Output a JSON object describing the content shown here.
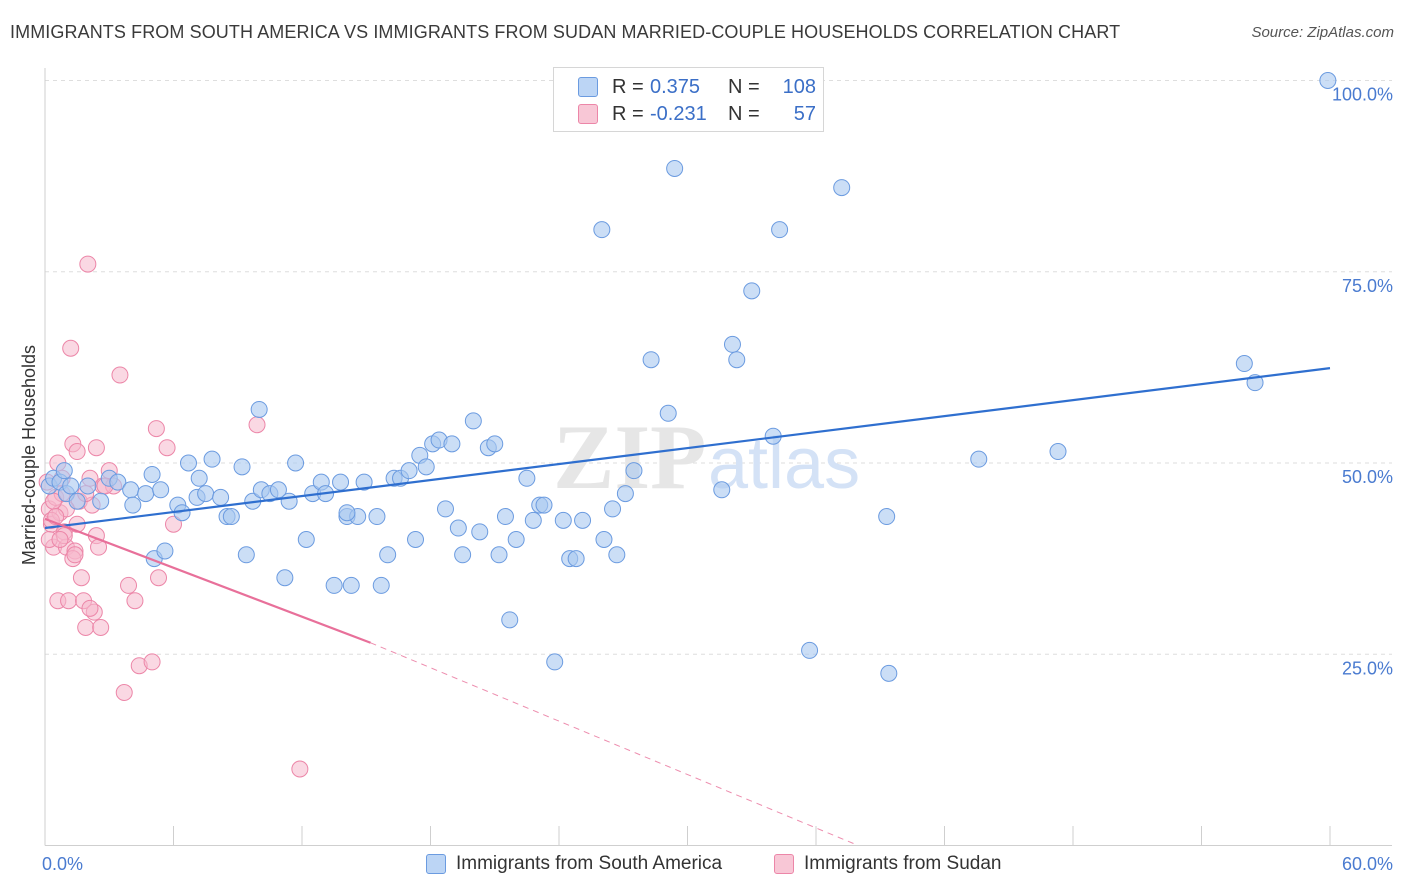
{
  "header": {
    "title": "IMMIGRANTS FROM SOUTH AMERICA VS IMMIGRANTS FROM SUDAN MARRIED-COUPLE HOUSEHOLDS CORRELATION CHART",
    "source": "Source: ZipAtlas.com"
  },
  "stats": {
    "blue": {
      "r_label": "R =",
      "r_value": "0.375",
      "n_label": "N =",
      "n_value": "108"
    },
    "pink": {
      "r_label": "R =",
      "r_value": "-0.231",
      "n_label": "N =",
      "n_value": "57"
    }
  },
  "watermark": {
    "zip": "ZIP",
    "atlas": "atlas"
  },
  "colors": {
    "blue_fill": "#a8c8f0",
    "blue_stroke": "#6b9be0",
    "blue_line": "#2f6fcf",
    "pink_fill": "#f6b8cc",
    "pink_stroke": "#ec86a8",
    "pink_line": "#e8709a",
    "axis_text": "#4a7bd0",
    "grid": "#dedede"
  },
  "chart_data": {
    "type": "scatter",
    "title": "IMMIGRANTS FROM SOUTH AMERICA VS IMMIGRANTS FROM SUDAN MARRIED-COUPLE HOUSEHOLDS CORRELATION CHART",
    "xlabel": "",
    "ylabel": "Married-couple Households",
    "xlim": [
      0,
      60
    ],
    "ylim": [
      0,
      102
    ],
    "x_tick_labels": [
      "0.0%",
      "60.0%"
    ],
    "y_ticks": [
      25,
      50,
      75,
      100
    ],
    "y_tick_labels": [
      "25.0%",
      "50.0%",
      "75.0%",
      "100.0%"
    ],
    "grid": true,
    "legend_position": "bottom-center",
    "series": [
      {
        "name": "Immigrants from South America",
        "color": "#6b9be0",
        "trend": {
          "x": [
            0,
            60
          ],
          "y": [
            41.5,
            62.4
          ]
        },
        "points": [
          [
            0.2,
            47
          ],
          [
            0.4,
            48
          ],
          [
            0.7,
            47.5
          ],
          [
            0.9,
            49
          ],
          [
            1.0,
            46
          ],
          [
            1.2,
            47
          ],
          [
            1.5,
            45
          ],
          [
            2.0,
            47
          ],
          [
            2.6,
            45
          ],
          [
            3.0,
            48
          ],
          [
            3.4,
            47.5
          ],
          [
            4.0,
            46.5
          ],
          [
            4.1,
            44.5
          ],
          [
            4.7,
            46
          ],
          [
            5.0,
            48.5
          ],
          [
            5.1,
            37.5
          ],
          [
            5.4,
            46.5
          ],
          [
            5.6,
            38.5
          ],
          [
            6.2,
            44.5
          ],
          [
            6.4,
            43.5
          ],
          [
            6.7,
            50
          ],
          [
            7.1,
            45.5
          ],
          [
            7.2,
            48
          ],
          [
            7.5,
            46
          ],
          [
            7.8,
            50.5
          ],
          [
            8.2,
            45.5
          ],
          [
            8.5,
            43
          ],
          [
            8.7,
            43
          ],
          [
            9.2,
            49.5
          ],
          [
            9.4,
            38
          ],
          [
            9.7,
            45
          ],
          [
            10.0,
            57
          ],
          [
            10.1,
            46.5
          ],
          [
            10.5,
            46
          ],
          [
            10.9,
            46.5
          ],
          [
            11.2,
            35
          ],
          [
            11.4,
            45
          ],
          [
            11.7,
            50
          ],
          [
            12.2,
            40
          ],
          [
            12.5,
            46
          ],
          [
            12.9,
            47.5
          ],
          [
            13.1,
            46
          ],
          [
            13.5,
            34
          ],
          [
            13.8,
            47.5
          ],
          [
            14.1,
            43
          ],
          [
            14.3,
            34
          ],
          [
            14.6,
            43
          ],
          [
            14.9,
            47.5
          ],
          [
            14.1,
            43.5
          ],
          [
            15.5,
            43
          ],
          [
            15.7,
            34
          ],
          [
            16.0,
            38
          ],
          [
            16.3,
            48
          ],
          [
            16.6,
            48
          ],
          [
            17.0,
            49
          ],
          [
            17.3,
            40
          ],
          [
            17.5,
            51
          ],
          [
            17.8,
            49.5
          ],
          [
            18.1,
            52.5
          ],
          [
            18.4,
            53
          ],
          [
            18.7,
            44
          ],
          [
            19.0,
            52.5
          ],
          [
            19.3,
            41.5
          ],
          [
            19.5,
            38
          ],
          [
            20.0,
            55.5
          ],
          [
            20.3,
            41
          ],
          [
            20.7,
            52
          ],
          [
            21.0,
            52.5
          ],
          [
            21.2,
            38
          ],
          [
            21.5,
            43
          ],
          [
            21.7,
            29.5
          ],
          [
            22.0,
            40
          ],
          [
            22.5,
            48
          ],
          [
            22.8,
            42.5
          ],
          [
            23.1,
            44.5
          ],
          [
            23.3,
            44.5
          ],
          [
            23.8,
            24
          ],
          [
            24.2,
            42.5
          ],
          [
            24.5,
            37.5
          ],
          [
            24.8,
            37.5
          ],
          [
            25.1,
            42.5
          ],
          [
            26.0,
            80.5
          ],
          [
            26.1,
            40
          ],
          [
            26.5,
            44
          ],
          [
            26.7,
            38
          ],
          [
            27.1,
            46
          ],
          [
            27.5,
            49
          ],
          [
            28.3,
            63.5
          ],
          [
            29.1,
            56.5
          ],
          [
            29.4,
            88.5
          ],
          [
            31.6,
            46.5
          ],
          [
            32.1,
            65.5
          ],
          [
            32.3,
            63.5
          ],
          [
            33.0,
            72.5
          ],
          [
            34.0,
            53.5
          ],
          [
            34.3,
            80.5
          ],
          [
            35.7,
            25.5
          ],
          [
            37.2,
            86
          ],
          [
            39.3,
            43
          ],
          [
            39.4,
            22.5
          ],
          [
            43.6,
            50.5
          ],
          [
            47.3,
            51.5
          ],
          [
            56.0,
            63
          ],
          [
            56.5,
            60.5
          ],
          [
            59.9,
            100
          ]
        ]
      },
      {
        "name": "Immigrants from Sudan",
        "color": "#ec86a8",
        "trend": {
          "x": [
            0,
            15.2
          ],
          "y": [
            42.7,
            26.5
          ]
        },
        "trend_extension": {
          "x": [
            15.2,
            37.8
          ],
          "y": [
            26.5,
            0.2
          ]
        },
        "points": [
          [
            0.1,
            47.5
          ],
          [
            0.2,
            44
          ],
          [
            0.3,
            42
          ],
          [
            0.4,
            39
          ],
          [
            0.5,
            45.5
          ],
          [
            0.6,
            50
          ],
          [
            0.7,
            43.5
          ],
          [
            0.8,
            48
          ],
          [
            0.9,
            41
          ],
          [
            1.0,
            39
          ],
          [
            0.6,
            32
          ],
          [
            0.8,
            46
          ],
          [
            1.1,
            32
          ],
          [
            1.2,
            65
          ],
          [
            1.3,
            52.5
          ],
          [
            1.4,
            38.5
          ],
          [
            1.5,
            42
          ],
          [
            1.6,
            45
          ],
          [
            1.7,
            35
          ],
          [
            1.8,
            32
          ],
          [
            1.3,
            37.5
          ],
          [
            1.9,
            28.5
          ],
          [
            2.0,
            76
          ],
          [
            2.1,
            48
          ],
          [
            2.2,
            44.5
          ],
          [
            2.3,
            30.5
          ],
          [
            2.4,
            40.5
          ],
          [
            2.5,
            39
          ],
          [
            2.6,
            28.5
          ],
          [
            2.7,
            47
          ],
          [
            3.0,
            49
          ],
          [
            3.2,
            47
          ],
          [
            3.5,
            61.5
          ],
          [
            3.7,
            20
          ],
          [
            3.9,
            34
          ],
          [
            4.2,
            32
          ],
          [
            4.4,
            23.5
          ],
          [
            5.0,
            24
          ],
          [
            5.3,
            35
          ],
          [
            5.2,
            54.5
          ],
          [
            5.7,
            52
          ],
          [
            6.0,
            42
          ],
          [
            1.5,
            51.5
          ],
          [
            2.4,
            52
          ],
          [
            1.0,
            44
          ],
          [
            0.9,
            40.5
          ],
          [
            0.4,
            45
          ],
          [
            1.9,
            46
          ],
          [
            0.3,
            42.5
          ],
          [
            9.9,
            55
          ],
          [
            11.9,
            10
          ],
          [
            0.2,
            40
          ],
          [
            1.4,
            38
          ],
          [
            0.7,
            40
          ],
          [
            2.1,
            31
          ],
          [
            0.5,
            43
          ],
          [
            2.8,
            47
          ]
        ]
      }
    ]
  },
  "legend": {
    "items": [
      {
        "label": "Immigrants from South America"
      },
      {
        "label": "Immigrants from Sudan"
      }
    ]
  }
}
